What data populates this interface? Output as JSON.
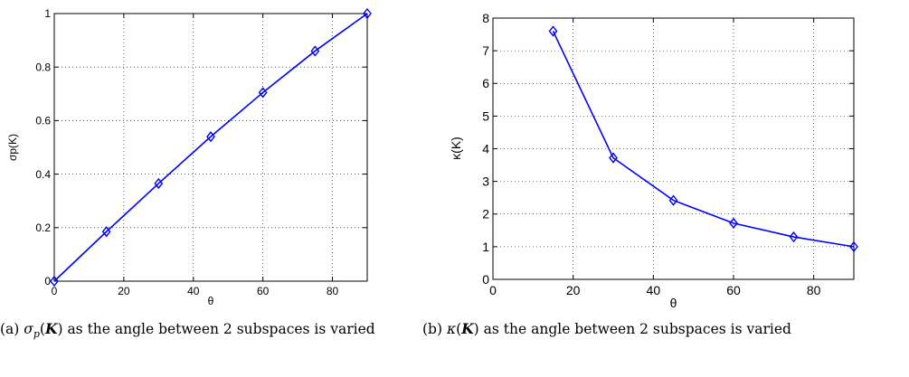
{
  "chart_data": [
    {
      "type": "line",
      "x": [
        0,
        15,
        30,
        45,
        60,
        75,
        90
      ],
      "series": [
        {
          "values": [
            0.0,
            0.185,
            0.365,
            0.54,
            0.705,
            0.86,
            1.0
          ],
          "color": "#0000ff",
          "marker": "diamond"
        }
      ],
      "xlabel": "θ",
      "ylabel": "σp(K)",
      "xlim": [
        0,
        90
      ],
      "ylim": [
        0,
        1
      ],
      "xticks": [
        0,
        20,
        40,
        60,
        80
      ],
      "xtick_labels": [
        "0",
        "20",
        "40",
        "60",
        "80"
      ],
      "yticks": [
        0,
        0.2,
        0.4,
        0.6,
        0.8,
        1
      ],
      "ytick_labels": [
        "0",
        "0.2",
        "0.4",
        "0.6",
        "0.8",
        "1"
      ],
      "grid": true
    },
    {
      "type": "line",
      "x": [
        15,
        30,
        45,
        60,
        75,
        90
      ],
      "series": [
        {
          "values": [
            7.6,
            3.72,
            2.42,
            1.72,
            1.3,
            1.0
          ],
          "color": "#0000ff",
          "marker": "diamond"
        }
      ],
      "xlabel": "θ",
      "ylabel": "κ(K)",
      "xlim": [
        0,
        90
      ],
      "ylim": [
        0,
        8
      ],
      "xticks": [
        0,
        20,
        40,
        60,
        80
      ],
      "xtick_labels": [
        "0",
        "20",
        "40",
        "60",
        "80"
      ],
      "yticks": [
        0,
        1,
        2,
        3,
        4,
        5,
        6,
        7,
        8
      ],
      "ytick_labels": [
        "0",
        "1",
        "2",
        "3",
        "4",
        "5",
        "6",
        "7",
        "8"
      ],
      "grid": true
    }
  ],
  "captions": {
    "a": {
      "label": "(a) ",
      "symbol": "σ",
      "subscript": "p",
      "arg_open": "(",
      "arg": "K",
      "arg_close": ")",
      "text": " as the angle between 2 subspaces is varied"
    },
    "b": {
      "label": "(b) ",
      "symbol": "κ",
      "arg_open": "(",
      "arg": "K",
      "arg_close": ")",
      "text": " as the angle between 2 subspaces is varied"
    }
  }
}
